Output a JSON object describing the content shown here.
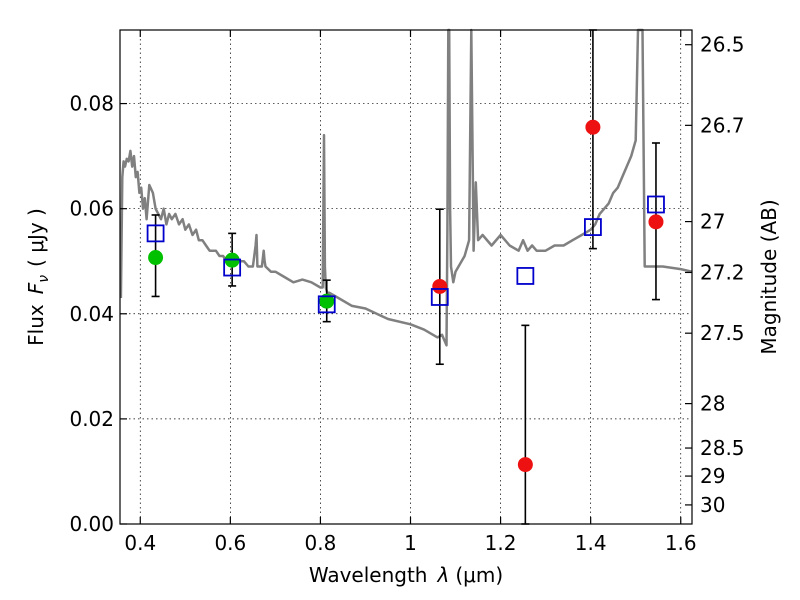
{
  "chart_data": {
    "type": "scatter",
    "xlabel_text": "Wavelength",
    "xlabel_symbol": "λ",
    "xlabel_unit": "(μm)",
    "ylabel_text": "Flux",
    "ylabel_symbol": "F",
    "ylabel_subscript": "ν",
    "ylabel_unit": "( μJy )",
    "y2label": "Magnitude (AB)",
    "xlim": [
      0.355,
      1.625
    ],
    "ylim": [
      0.0,
      0.094
    ],
    "xticks": [
      0.4,
      0.6,
      0.8,
      1.0,
      1.2,
      1.4,
      1.6
    ],
    "xtick_labels": [
      "0.4",
      "0.6",
      "0.8",
      "1",
      "1.2",
      "1.4",
      "1.6"
    ],
    "yticks": [
      0.0,
      0.02,
      0.04,
      0.06,
      0.08
    ],
    "ytick_labels": [
      "0.00",
      "0.02",
      "0.04",
      "0.06",
      "0.08"
    ],
    "mag_ticks": [
      26.5,
      26.7,
      27,
      27.2,
      27.5,
      28,
      28.5,
      29,
      30
    ],
    "mag_tick_labels": [
      "26.5",
      "26.7",
      "27",
      "27.2",
      "27.5",
      "28",
      "28.5",
      "29",
      "30"
    ],
    "grid": true,
    "colors": {
      "model": "#808080",
      "green": "#00c000",
      "red": "#ee1111",
      "square": "#0000cc",
      "error_bar": "#000000"
    },
    "series": [
      {
        "name": "model spectrum",
        "style": "line",
        "x": [
          0.357,
          0.36,
          0.363,
          0.366,
          0.37,
          0.374,
          0.378,
          0.382,
          0.386,
          0.39,
          0.394,
          0.398,
          0.402,
          0.406,
          0.41,
          0.414,
          0.42,
          0.428,
          0.434,
          0.44,
          0.446,
          0.452,
          0.458,
          0.464,
          0.47,
          0.478,
          0.486,
          0.494,
          0.5,
          0.508,
          0.516,
          0.524,
          0.53,
          0.538,
          0.546,
          0.554,
          0.56,
          0.568,
          0.576,
          0.584,
          0.592,
          0.6,
          0.61,
          0.62,
          0.63,
          0.64,
          0.65,
          0.656,
          0.658,
          0.66,
          0.67,
          0.674,
          0.676,
          0.678,
          0.69,
          0.7,
          0.72,
          0.74,
          0.76,
          0.78,
          0.8,
          0.805,
          0.808,
          0.81,
          0.812,
          0.815,
          0.82,
          0.84,
          0.87,
          0.9,
          0.95,
          1.0,
          1.03,
          1.05,
          1.06,
          1.07,
          1.08,
          1.082,
          1.084,
          1.086,
          1.088,
          1.09,
          1.095,
          1.1,
          1.12,
          1.13,
          1.135,
          1.14,
          1.145,
          1.15,
          1.16,
          1.18,
          1.2,
          1.21,
          1.22,
          1.24,
          1.25,
          1.26,
          1.27,
          1.28,
          1.3,
          1.32,
          1.34,
          1.36,
          1.38,
          1.4,
          1.41,
          1.415,
          1.42,
          1.43,
          1.44,
          1.45,
          1.46,
          1.47,
          1.48,
          1.49,
          1.5,
          1.505,
          1.51,
          1.515,
          1.52,
          1.53,
          1.56,
          1.6,
          1.625
        ],
        "y": [
          0.043,
          0.066,
          0.069,
          0.068,
          0.0695,
          0.069,
          0.071,
          0.068,
          0.07,
          0.066,
          0.067,
          0.063,
          0.064,
          0.06,
          0.062,
          0.058,
          0.0645,
          0.063,
          0.06,
          0.059,
          0.058,
          0.06,
          0.057,
          0.059,
          0.058,
          0.059,
          0.057,
          0.058,
          0.056,
          0.057,
          0.055,
          0.056,
          0.054,
          0.054,
          0.053,
          0.052,
          0.052,
          0.052,
          0.051,
          0.051,
          0.05,
          0.051,
          0.05,
          0.05,
          0.05,
          0.049,
          0.049,
          0.053,
          0.055,
          0.049,
          0.049,
          0.052,
          0.05,
          0.049,
          0.048,
          0.048,
          0.047,
          0.046,
          0.0465,
          0.046,
          0.045,
          0.045,
          0.074,
          0.049,
          0.045,
          0.044,
          0.044,
          0.043,
          0.0415,
          0.041,
          0.039,
          0.038,
          0.037,
          0.036,
          0.0355,
          0.036,
          0.034,
          0.056,
          0.094,
          0.094,
          0.06,
          0.049,
          0.046,
          0.048,
          0.051,
          0.054,
          0.094,
          0.052,
          0.065,
          0.054,
          0.055,
          0.053,
          0.055,
          0.054,
          0.053,
          0.052,
          0.054,
          0.052,
          0.053,
          0.052,
          0.052,
          0.053,
          0.053,
          0.054,
          0.055,
          0.056,
          0.057,
          0.058,
          0.059,
          0.06,
          0.061,
          0.063,
          0.064,
          0.066,
          0.068,
          0.07,
          0.073,
          0.094,
          0.094,
          0.094,
          0.049,
          0.049,
          0.049,
          0.0485,
          0.048
        ]
      },
      {
        "name": "green points",
        "style": "circle",
        "x": [
          0.434,
          0.604,
          0.814
        ],
        "y": [
          0.0507,
          0.0502,
          0.0424
        ],
        "yerr_lo": [
          0.0433,
          0.0453,
          0.0385
        ],
        "yerr_hi": [
          0.0588,
          0.0553,
          0.0464
        ]
      },
      {
        "name": "red points",
        "style": "circle",
        "x": [
          1.065,
          1.255,
          1.405,
          1.545
        ],
        "y": [
          0.0452,
          0.0113,
          0.0755,
          0.0575
        ],
        "yerr_lo": [
          0.0304,
          0.0,
          0.0524,
          0.0427
        ],
        "yerr_hi": [
          0.0599,
          0.0378,
          0.094,
          0.0725
        ]
      },
      {
        "name": "model bandpass fluxes",
        "style": "open-square",
        "x": [
          0.434,
          0.604,
          0.814,
          1.065,
          1.255,
          1.405,
          1.545
        ],
        "y": [
          0.0553,
          0.0488,
          0.0418,
          0.0432,
          0.0472,
          0.0565,
          0.0608
        ]
      }
    ]
  }
}
